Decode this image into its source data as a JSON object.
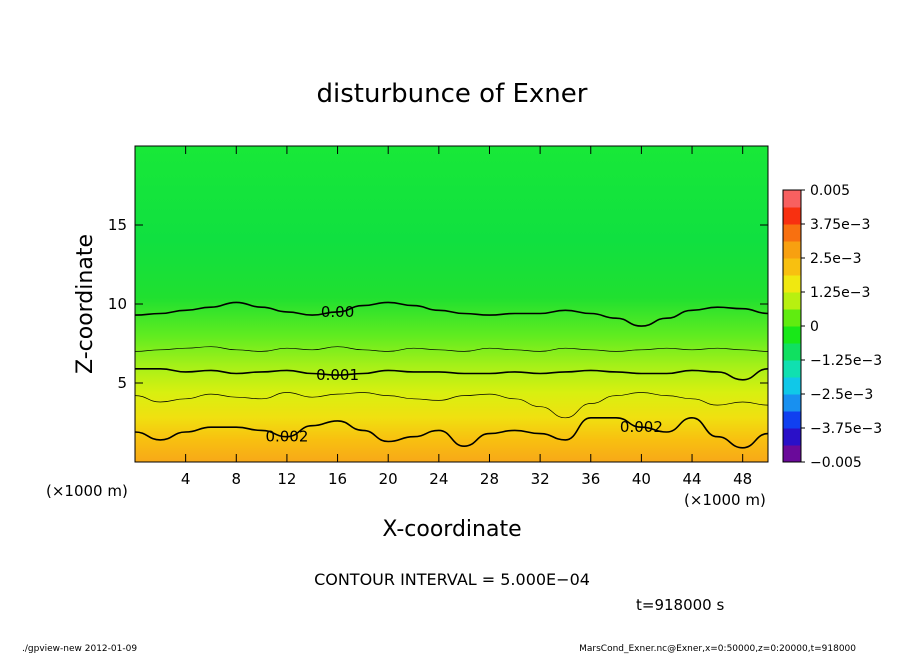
{
  "chart_data": {
    "type": "contour",
    "title": "disturbunce of Exner",
    "xlabel": "X-coordinate",
    "ylabel": "Z-coordinate",
    "x_unit_left": "(×1000 m)",
    "x_unit_right": "(×1000 m)",
    "xlim": [
      0,
      50
    ],
    "ylim": [
      0,
      20
    ],
    "xticks": [
      4,
      8,
      12,
      16,
      20,
      24,
      28,
      32,
      36,
      40,
      44,
      48
    ],
    "yticks": [
      5,
      10,
      15
    ],
    "colorbar": {
      "levels": [
        -0.005,
        -0.00375,
        -0.0025,
        -0.00125,
        0,
        0.00125,
        0.0025,
        0.00375,
        0.005
      ],
      "labels": [
        "−0.005",
        "−3.75e−3",
        "−2.5e−3",
        "−1.25e−3",
        "0",
        "1.25e−3",
        "2.5e−3",
        "3.75e−3",
        "0.005"
      ],
      "colors": [
        "#6a0a9a",
        "#2a10c8",
        "#1040f0",
        "#1890f0",
        "#10c8e8",
        "#10e0b0",
        "#10e060",
        "#18e818",
        "#60ec10",
        "#b8f010",
        "#f0e810",
        "#f8c010",
        "#f8a010",
        "#f87010",
        "#f83010",
        "#f86060"
      ]
    },
    "contours": [
      {
        "label": "0.00",
        "z": [
          9.3,
          9.4,
          9.6,
          9.8,
          10.1,
          9.8,
          9.5,
          9.3,
          9.5,
          9.9,
          10.1,
          9.9,
          9.6,
          9.4,
          9.3,
          9.4,
          9.4,
          9.6,
          9.4,
          9.1,
          8.6,
          9.1,
          9.6,
          9.8,
          9.7,
          9.4
        ]
      },
      {
        "label": "",
        "z": [
          7.0,
          7.1,
          7.2,
          7.3,
          7.1,
          7.0,
          7.2,
          7.1,
          7.3,
          7.1,
          7.0,
          7.2,
          7.1,
          7.0,
          7.2,
          7.1,
          7.0,
          7.2,
          7.1,
          7.0,
          7.1,
          7.2,
          7.1,
          7.2,
          7.1,
          7.0
        ]
      },
      {
        "label": "0.001",
        "z": [
          5.9,
          5.9,
          5.7,
          5.8,
          5.6,
          5.7,
          5.8,
          5.6,
          5.5,
          5.6,
          5.8,
          5.7,
          5.7,
          5.6,
          5.6,
          5.7,
          5.6,
          5.7,
          5.8,
          5.7,
          5.6,
          5.6,
          5.8,
          5.7,
          5.2,
          5.9
        ]
      },
      {
        "label": "",
        "z": [
          4.2,
          3.8,
          4.0,
          4.3,
          4.1,
          4.0,
          4.4,
          4.1,
          4.3,
          4.4,
          4.2,
          4.0,
          3.9,
          4.2,
          4.3,
          4.0,
          3.5,
          2.8,
          3.7,
          4.2,
          4.4,
          4.2,
          4.0,
          3.6,
          3.8,
          3.6
        ]
      },
      {
        "label": "0.002",
        "z": [
          1.9,
          1.4,
          1.9,
          2.2,
          2.2,
          2.0,
          1.6,
          2.3,
          2.6,
          2.0,
          1.3,
          1.6,
          2.0,
          1.0,
          1.8,
          2.0,
          1.8,
          1.4,
          2.8,
          2.8,
          2.2,
          1.9,
          2.8,
          1.6,
          0.9,
          1.8
        ]
      }
    ],
    "grid": false,
    "contour_interval": "CONTOUR INTERVAL = 5.000E−04",
    "time_label": "t=918000 s"
  },
  "footer": {
    "left": "./gpview-new   2012-01-09",
    "right": "MarsCond_Exner.nc@Exner,x=0:50000,z=0:20000,t=918000"
  }
}
